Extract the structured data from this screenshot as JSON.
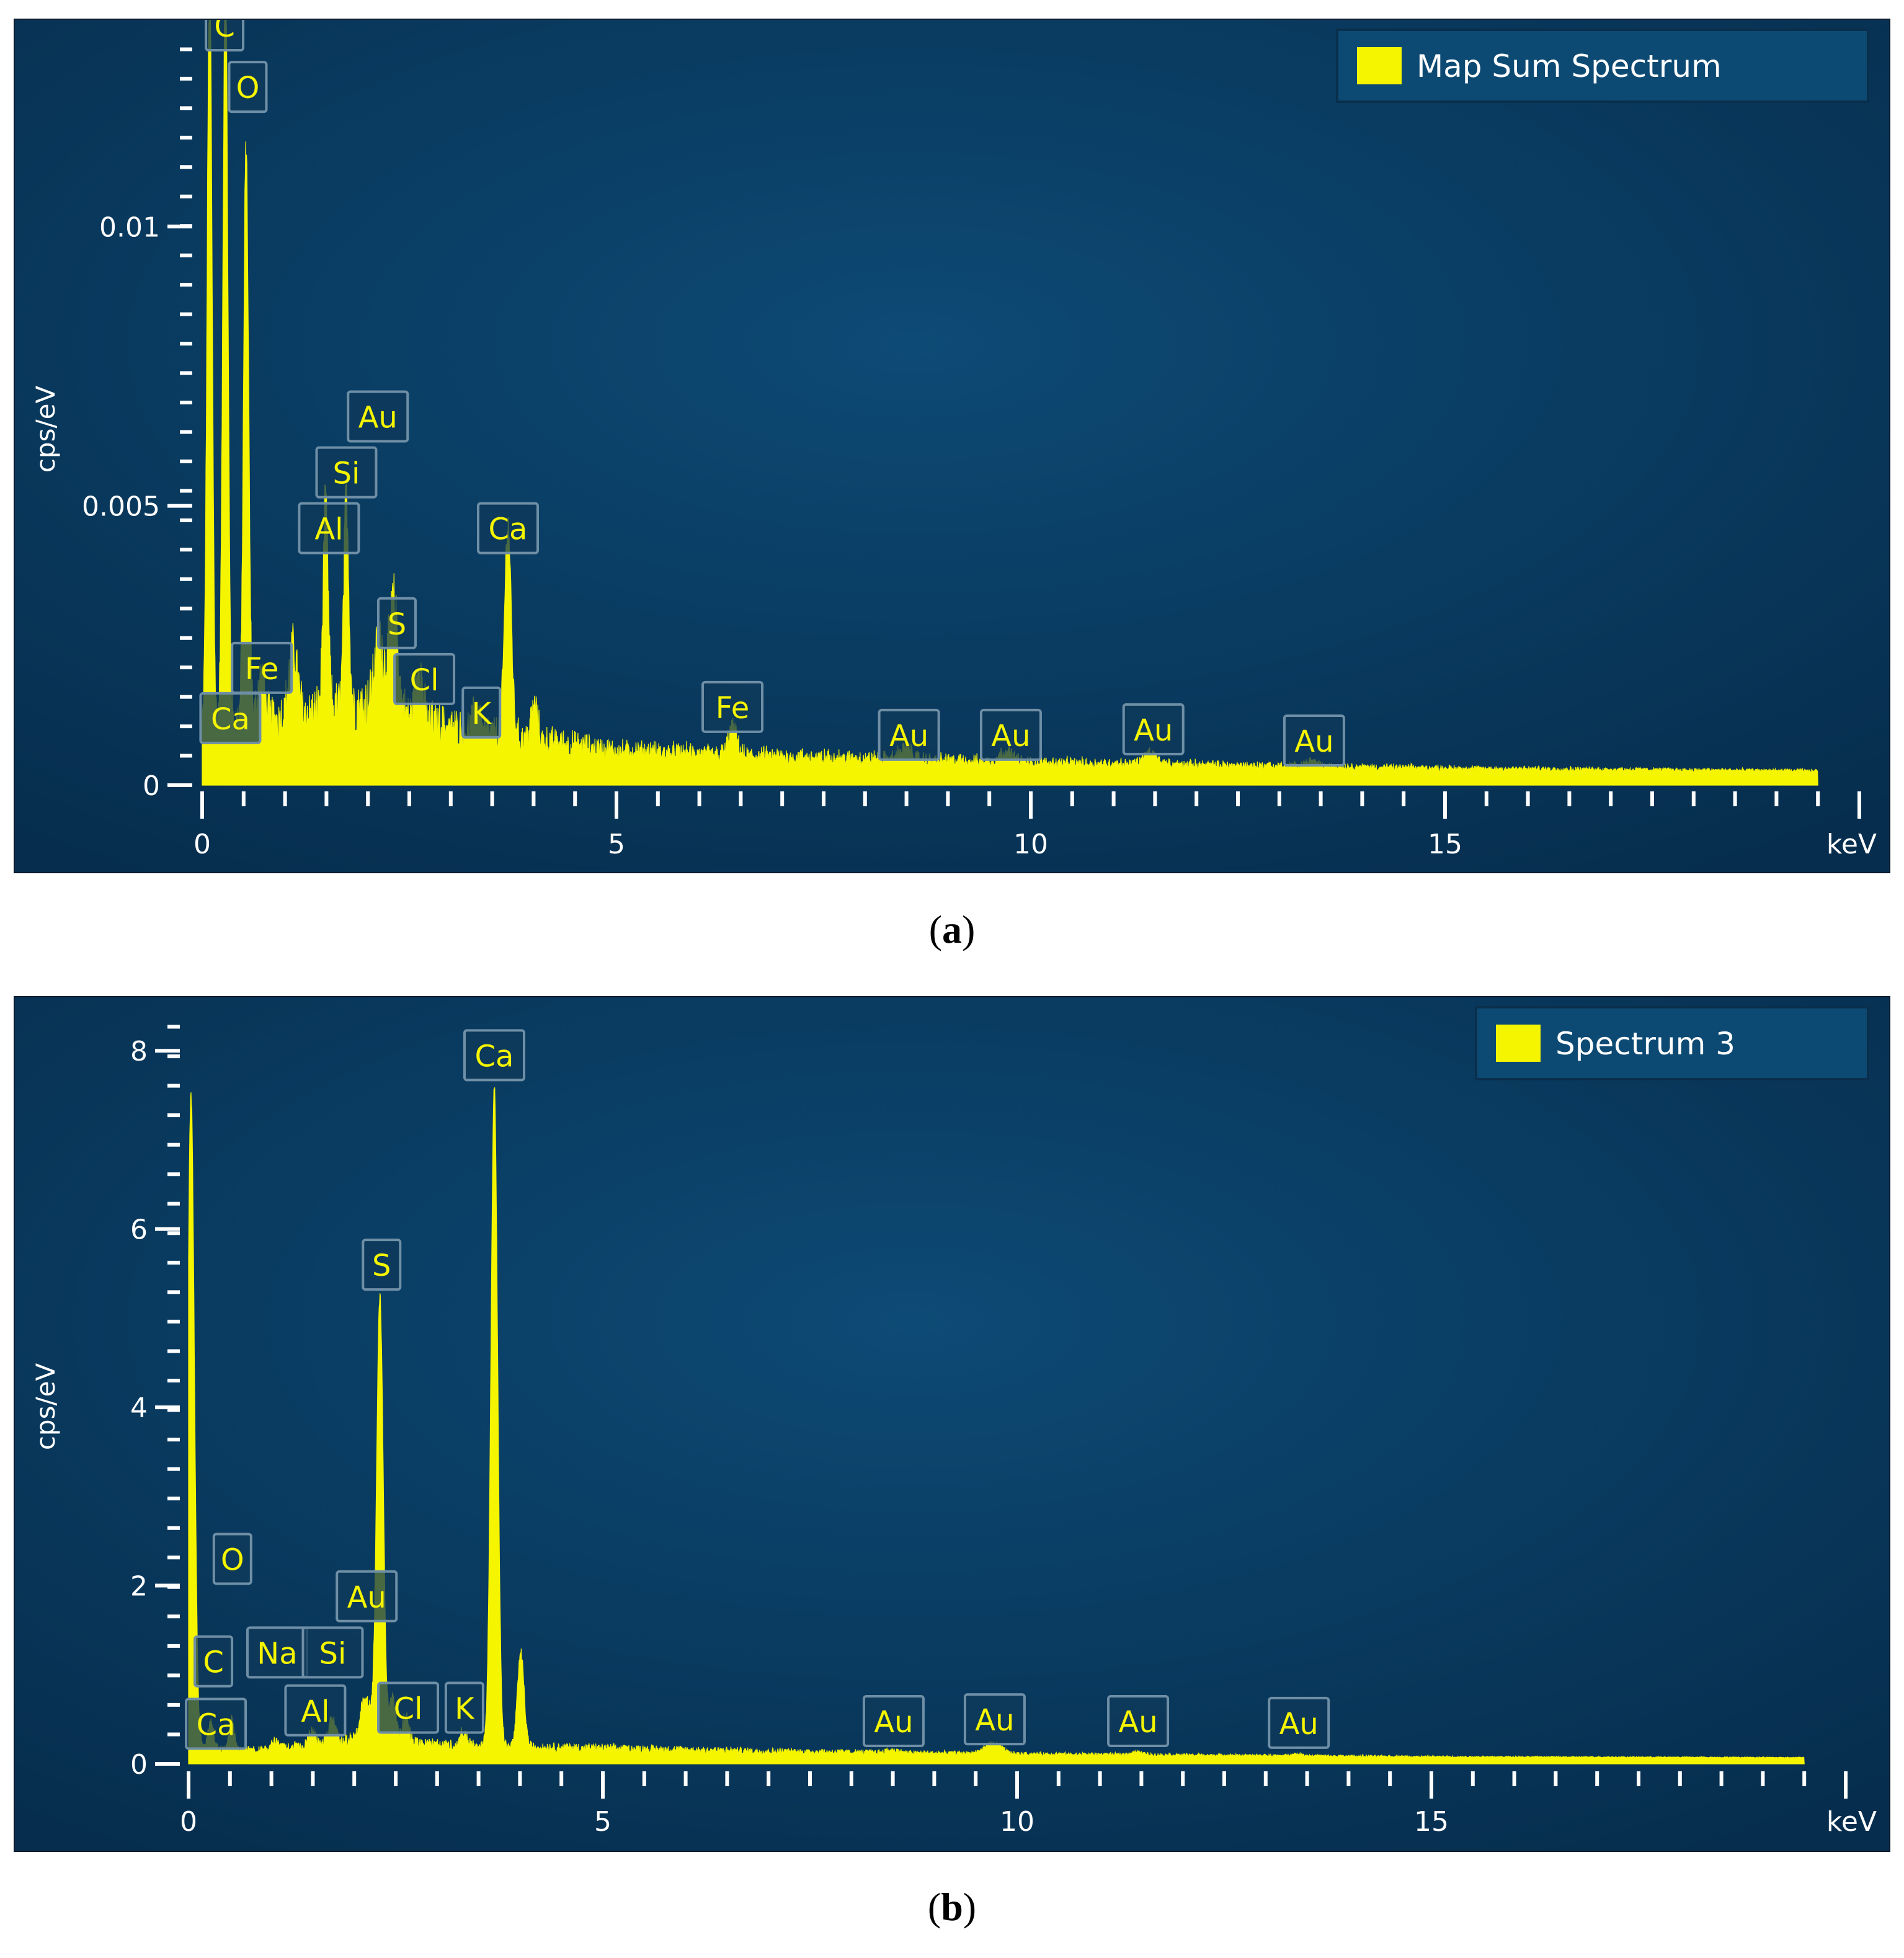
{
  "chart_data": [
    {
      "type": "area",
      "panel_label": "a",
      "legend": "Map Sum Spectrum",
      "legend_position": "top-right",
      "ylabel": "cps/eV",
      "xunit": "keV",
      "xlim": [
        0,
        20
      ],
      "ylim": [
        0,
        0.0137
      ],
      "xticks": [
        0,
        5,
        10,
        15
      ],
      "yticks": [
        0,
        0.005,
        0.01
      ],
      "ytick_labels": [
        "0",
        "0.005",
        "0.01"
      ],
      "baseline": 0.0002,
      "noise": 0.00012,
      "background": [
        {
          "x": 0.0,
          "y": 0.0007
        },
        {
          "x": 0.5,
          "y": 0.0009
        },
        {
          "x": 1.0,
          "y": 0.001
        },
        {
          "x": 2.0,
          "y": 0.0012
        },
        {
          "x": 3.0,
          "y": 0.0008
        },
        {
          "x": 4.0,
          "y": 0.0006
        },
        {
          "x": 5.0,
          "y": 0.0004
        },
        {
          "x": 7.0,
          "y": 0.0003
        },
        {
          "x": 10.0,
          "y": 0.0002
        },
        {
          "x": 15.0,
          "y": 0.0001
        },
        {
          "x": 20.0,
          "y": 5e-05
        }
      ],
      "peaks": [
        {
          "x": 0.09,
          "y": 0.0137,
          "w": 0.03
        },
        {
          "x": 0.28,
          "y": 0.0137,
          "w": 0.03
        },
        {
          "x": 0.53,
          "y": 0.0103,
          "w": 0.03
        },
        {
          "x": 0.71,
          "y": 0.0008,
          "w": 0.04
        },
        {
          "x": 1.1,
          "y": 0.0012,
          "w": 0.05
        },
        {
          "x": 1.49,
          "y": 0.0037,
          "w": 0.03
        },
        {
          "x": 1.74,
          "y": 0.0038,
          "w": 0.03
        },
        {
          "x": 2.14,
          "y": 0.0012,
          "w": 0.06
        },
        {
          "x": 2.31,
          "y": 0.002,
          "w": 0.05
        },
        {
          "x": 2.62,
          "y": 0.001,
          "w": 0.04
        },
        {
          "x": 3.31,
          "y": 0.0004,
          "w": 0.04
        },
        {
          "x": 3.69,
          "y": 0.0038,
          "w": 0.04
        },
        {
          "x": 4.01,
          "y": 0.0006,
          "w": 0.04
        },
        {
          "x": 6.4,
          "y": 0.0005,
          "w": 0.05
        },
        {
          "x": 8.49,
          "y": 0.0002,
          "w": 0.08
        },
        {
          "x": 9.71,
          "y": 0.0002,
          "w": 0.08
        },
        {
          "x": 11.44,
          "y": 0.0002,
          "w": 0.08
        },
        {
          "x": 13.38,
          "y": 0.0001,
          "w": 0.08
        }
      ],
      "annotations": [
        {
          "text": "C",
          "x": 0.27,
          "y": 0.0136
        },
        {
          "text": "O",
          "x": 0.55,
          "y": 0.0125
        },
        {
          "text": "Au",
          "x": 2.12,
          "y": 0.0066
        },
        {
          "text": "Si",
          "x": 1.74,
          "y": 0.0056
        },
        {
          "text": "Al",
          "x": 1.53,
          "y": 0.0046
        },
        {
          "text": "Ca",
          "x": 3.69,
          "y": 0.0046
        },
        {
          "text": "Fe",
          "x": 0.72,
          "y": 0.0021
        },
        {
          "text": "S",
          "x": 2.35,
          "y": 0.0029
        },
        {
          "text": "Cl",
          "x": 2.68,
          "y": 0.0019
        },
        {
          "text": "Ca",
          "x": 0.34,
          "y": 0.0012
        },
        {
          "text": "K",
          "x": 3.37,
          "y": 0.0013
        },
        {
          "text": "Fe",
          "x": 6.4,
          "y": 0.0014
        },
        {
          "text": "Au",
          "x": 8.53,
          "y": 0.0009
        },
        {
          "text": "Au",
          "x": 9.76,
          "y": 0.0009
        },
        {
          "text": "Au",
          "x": 11.48,
          "y": 0.001
        },
        {
          "text": "Au",
          "x": 13.42,
          "y": 0.0008
        }
      ]
    },
    {
      "type": "area",
      "panel_label": "b",
      "legend": "Spectrum 3",
      "legend_position": "top-right",
      "ylabel": "cps/eV",
      "xunit": "keV",
      "xlim": [
        0,
        20
      ],
      "ylim": [
        0,
        8.6
      ],
      "xticks": [
        0,
        5,
        10,
        15
      ],
      "yticks": [
        0,
        2,
        4,
        6,
        8
      ],
      "ytick_labels": [
        "0",
        "2",
        "4",
        "6",
        "8"
      ],
      "baseline": 0.06,
      "noise": 0.015,
      "background": [
        {
          "x": 0.0,
          "y": 0.15
        },
        {
          "x": 0.5,
          "y": 0.1
        },
        {
          "x": 1.0,
          "y": 0.1
        },
        {
          "x": 2.0,
          "y": 0.2
        },
        {
          "x": 3.0,
          "y": 0.15
        },
        {
          "x": 4.5,
          "y": 0.12
        },
        {
          "x": 7.0,
          "y": 0.08
        },
        {
          "x": 10.0,
          "y": 0.05
        },
        {
          "x": 15.0,
          "y": 0.02
        },
        {
          "x": 20.0,
          "y": 0.01
        }
      ],
      "peaks": [
        {
          "x": 0.03,
          "y": 7.3,
          "w": 0.04
        },
        {
          "x": 0.27,
          "y": 0.3,
          "w": 0.03
        },
        {
          "x": 0.52,
          "y": 0.35,
          "w": 0.03
        },
        {
          "x": 1.04,
          "y": 0.1,
          "w": 0.04
        },
        {
          "x": 1.49,
          "y": 0.15,
          "w": 0.04
        },
        {
          "x": 1.74,
          "y": 0.3,
          "w": 0.04
        },
        {
          "x": 2.14,
          "y": 0.5,
          "w": 0.06
        },
        {
          "x": 2.31,
          "y": 5.0,
          "w": 0.04
        },
        {
          "x": 2.46,
          "y": 0.5,
          "w": 0.04
        },
        {
          "x": 2.62,
          "y": 0.3,
          "w": 0.04
        },
        {
          "x": 3.31,
          "y": 0.15,
          "w": 0.04
        },
        {
          "x": 3.69,
          "y": 7.4,
          "w": 0.04
        },
        {
          "x": 4.01,
          "y": 1.05,
          "w": 0.04
        },
        {
          "x": 8.49,
          "y": 0.03,
          "w": 0.08
        },
        {
          "x": 9.71,
          "y": 0.12,
          "w": 0.1
        },
        {
          "x": 11.44,
          "y": 0.03,
          "w": 0.08
        },
        {
          "x": 13.38,
          "y": 0.02,
          "w": 0.08
        }
      ],
      "annotations": [
        {
          "text": "Ca",
          "x": 3.69,
          "y": 7.95
        },
        {
          "text": "S",
          "x": 2.33,
          "y": 5.6
        },
        {
          "text": "O",
          "x": 0.53,
          "y": 2.3
        },
        {
          "text": "Au",
          "x": 2.15,
          "y": 1.88
        },
        {
          "text": "C",
          "x": 0.3,
          "y": 1.15
        },
        {
          "text": "Na",
          "x": 1.07,
          "y": 1.25
        },
        {
          "text": "Si",
          "x": 1.74,
          "y": 1.25
        },
        {
          "text": "Al",
          "x": 1.53,
          "y": 0.6
        },
        {
          "text": "Cl",
          "x": 2.65,
          "y": 0.63
        },
        {
          "text": "K",
          "x": 3.33,
          "y": 0.63
        },
        {
          "text": "Ca",
          "x": 0.33,
          "y": 0.45
        },
        {
          "text": "Au",
          "x": 8.51,
          "y": 0.48
        },
        {
          "text": "Au",
          "x": 9.73,
          "y": 0.5
        },
        {
          "text": "Au",
          "x": 11.46,
          "y": 0.48
        },
        {
          "text": "Au",
          "x": 13.4,
          "y": 0.46
        }
      ]
    }
  ],
  "colors": {
    "spectrum": "#f5f500",
    "label_text": "#f5f500",
    "axis_text": "#ffffff",
    "label_bg": "#0f3a5a",
    "label_border": "#6f8fa6",
    "bg_inner": "#0d4a75",
    "bg_outer": "#062d4d",
    "legend_bg": "#0d4a73"
  },
  "captions": [
    {
      "open": "(",
      "letter": "a",
      "close": ")"
    },
    {
      "open": "(",
      "letter": "b",
      "close": ")"
    }
  ]
}
